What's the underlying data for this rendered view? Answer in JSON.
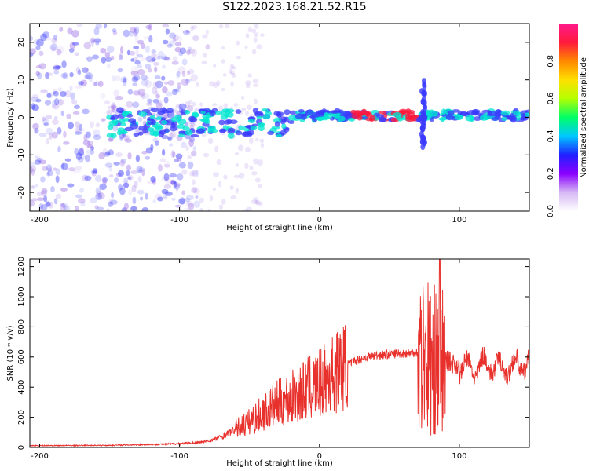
{
  "title": "S122.2023.168.21.52.R15",
  "colors": {
    "trace": "#e8312c",
    "axis": "#000000",
    "low": "#a47be8",
    "mid": "#3b3bff",
    "high": "#00e5d0",
    "peak": "#ff1a3c"
  },
  "chart_data": [
    {
      "type": "heatmap",
      "xlabel": "Height of straight line (km)",
      "ylabel": "Frequency (Hz)",
      "xlim": [
        -207,
        150
      ],
      "ylim": [
        -25,
        25
      ],
      "xticks": [
        -200,
        -100,
        0,
        100
      ],
      "yticks": [
        -20,
        -10,
        0,
        10,
        20
      ],
      "colorbar": {
        "label": "Normalized spectral amplitude",
        "range": [
          0.0,
          1.0
        ],
        "ticks": [
          "0.0",
          "0.2",
          "0.4",
          "0.6",
          "0.8"
        ],
        "stops": [
          "#ffffff",
          "#d6b8f4",
          "#8a00ff",
          "#2020ff",
          "#00c8ff",
          "#00ff66",
          "#b4ff00",
          "#ffe000",
          "#ff8800",
          "#ff1a3c",
          "#ff1a8c"
        ]
      }
    },
    {
      "type": "line",
      "xlabel": "Height of straight line (km)",
      "ylabel": "SNR (10 * v/v)",
      "xlim": [
        -207,
        150
      ],
      "ylim": [
        0,
        1250
      ],
      "xticks": [
        -200,
        -100,
        0,
        100
      ],
      "yticks": [
        0,
        200,
        400,
        600,
        800,
        1000,
        1200
      ],
      "envelope": [
        [
          -207,
          12
        ],
        [
          -150,
          14
        ],
        [
          -110,
          22
        ],
        [
          -90,
          30
        ],
        [
          -80,
          40
        ],
        [
          -70,
          70
        ],
        [
          -60,
          120
        ],
        [
          -50,
          170
        ],
        [
          -40,
          230
        ],
        [
          -30,
          290
        ],
        [
          -20,
          330
        ],
        [
          -10,
          380
        ],
        [
          0,
          420
        ],
        [
          10,
          490
        ],
        [
          20,
          550
        ],
        [
          30,
          590
        ],
        [
          40,
          610
        ],
        [
          50,
          620
        ],
        [
          60,
          625
        ],
        [
          70,
          630
        ],
        [
          78,
          600
        ],
        [
          82,
          540
        ],
        [
          86,
          560
        ],
        [
          90,
          580
        ],
        [
          100,
          540
        ],
        [
          110,
          520
        ],
        [
          120,
          560
        ],
        [
          130,
          520
        ],
        [
          140,
          540
        ],
        [
          150,
          560
        ]
      ],
      "features": [
        {
          "x": 82,
          "y_min": 90,
          "y_max": 1080
        },
        {
          "x": 86,
          "y_max": 1250
        }
      ]
    }
  ]
}
